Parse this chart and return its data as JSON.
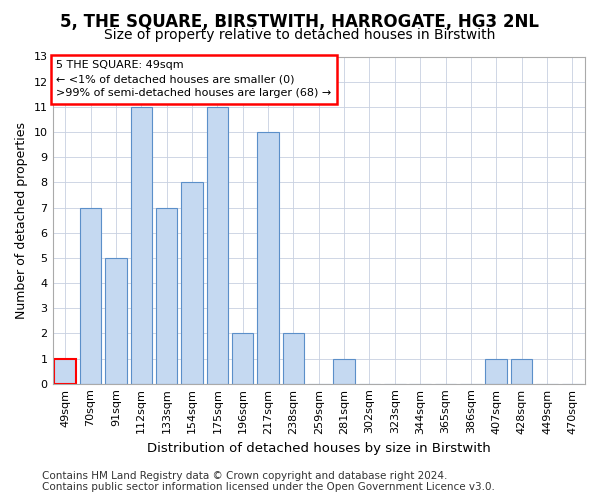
{
  "title": "5, THE SQUARE, BIRSTWITH, HARROGATE, HG3 2NL",
  "subtitle": "Size of property relative to detached houses in Birstwith",
  "xlabel": "Distribution of detached houses by size in Birstwith",
  "ylabel": "Number of detached properties",
  "categories": [
    "49sqm",
    "70sqm",
    "91sqm",
    "112sqm",
    "133sqm",
    "154sqm",
    "175sqm",
    "196sqm",
    "217sqm",
    "238sqm",
    "259sqm",
    "281sqm",
    "302sqm",
    "323sqm",
    "344sqm",
    "365sqm",
    "386sqm",
    "407sqm",
    "428sqm",
    "449sqm",
    "470sqm"
  ],
  "values": [
    1,
    7,
    5,
    11,
    7,
    8,
    11,
    2,
    10,
    2,
    0,
    1,
    0,
    0,
    0,
    0,
    0,
    1,
    1,
    0,
    0
  ],
  "highlight_index": 0,
  "bar_color": "#c5d9f1",
  "bar_edge_color": "#5b8fc9",
  "highlight_bar_edge_color": "red",
  "annotation_box_text": "5 THE SQUARE: 49sqm\n← <1% of detached houses are smaller (0)\n>99% of semi-detached houses are larger (68) →",
  "annotation_box_edge_color": "red",
  "annotation_box_face_color": "white",
  "ylim": [
    0,
    13
  ],
  "yticks": [
    0,
    1,
    2,
    3,
    4,
    5,
    6,
    7,
    8,
    9,
    10,
    11,
    12,
    13
  ],
  "grid_color": "#c8d0e0",
  "background_color": "#ffffff",
  "footer_text": "Contains HM Land Registry data © Crown copyright and database right 2024.\nContains public sector information licensed under the Open Government Licence v3.0.",
  "title_fontsize": 12,
  "subtitle_fontsize": 10,
  "xlabel_fontsize": 9.5,
  "ylabel_fontsize": 9,
  "tick_fontsize": 8,
  "footer_fontsize": 7.5
}
